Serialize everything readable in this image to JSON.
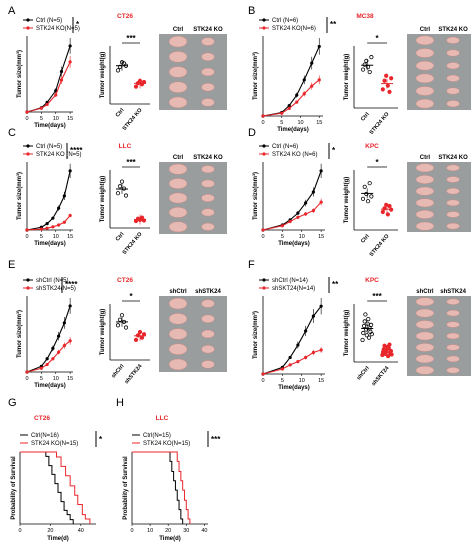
{
  "colors": {
    "ctrl": "#000000",
    "ko": "#e8262b",
    "title": "#e8262b"
  },
  "panels": [
    {
      "letter": "A",
      "tumor_model": "CT26",
      "legend": [
        "Ctrl (N=5)",
        "STK24 KO(N=5)"
      ],
      "significance": "*",
      "photo_labels": [
        "Ctrl",
        "STK24 KO"
      ],
      "chart_data": [
        {
          "type": "line",
          "xlabel": "Time(days)",
          "ylabel": "Tumor size(mm³)",
          "x": [
            0,
            5,
            7,
            10,
            12,
            15
          ],
          "xticks": [
            0,
            5,
            10,
            15
          ],
          "xlim": [
            0,
            16
          ],
          "series": [
            {
              "name": "Ctrl (N=5)",
              "values": [
                0,
                40,
                90,
                200,
                380,
                620
              ]
            },
            {
              "name": "STK24 KO(N=5)",
              "values": [
                0,
                35,
                70,
                160,
                300,
                470
              ]
            }
          ]
        },
        {
          "type": "scatter",
          "ylabel": "Tumor weight(g)",
          "categories": [
            "Ctrl",
            "STK24 KO"
          ],
          "significance": "***",
          "series": [
            {
              "name": "Ctrl",
              "values": [
                0.58,
                0.64,
                0.72,
                0.7,
                0.66
              ]
            },
            {
              "name": "STK24 KO",
              "values": [
                0.3,
                0.36,
                0.4,
                0.34,
                0.38
              ]
            }
          ]
        }
      ]
    },
    {
      "letter": "B",
      "tumor_model": "MC38",
      "legend": [
        "Ctrl (N=6)",
        "STK24 KO(N=6)"
      ],
      "significance": "**",
      "photo_labels": [
        "Ctrl",
        "STK24 KO"
      ],
      "chart_data": [
        {
          "type": "line",
          "xlabel": "Time(days)",
          "ylabel": "Tumor size(mm³)",
          "x": [
            0,
            5,
            7,
            9,
            11,
            13,
            15
          ],
          "xticks": [
            0,
            5,
            10,
            15
          ],
          "xlim": [
            0,
            16
          ],
          "series": [
            {
              "name": "Ctrl (N=6)",
              "values": [
                0,
                50,
                150,
                300,
                520,
                760,
                1000
              ]
            },
            {
              "name": "STK24 KO(N=6)",
              "values": [
                0,
                40,
                110,
                200,
                320,
                430,
                520
              ]
            }
          ]
        },
        {
          "type": "scatter",
          "ylabel": "Tumor weight(g)",
          "categories": [
            "Ctrl",
            "STK24 KO"
          ],
          "significance": "*",
          "series": [
            {
              "name": "Ctrl",
              "values": [
                0.62,
                0.7,
                0.76,
                0.66,
                0.58,
                0.82
              ]
            },
            {
              "name": "STK24 KO",
              "values": [
                0.3,
                0.44,
                0.52,
                0.36,
                0.26,
                0.48
              ]
            }
          ]
        }
      ]
    },
    {
      "letter": "C",
      "tumor_model": "LLC",
      "legend": [
        "Ctrl (N=5)",
        "STK24 KO (N=5)"
      ],
      "significance": "****",
      "photo_labels": [
        "Ctrl",
        "STK24 KO"
      ],
      "chart_data": [
        {
          "type": "line",
          "xlabel": "Time(days)",
          "ylabel": "Tumor size(mm³)",
          "x": [
            0,
            5,
            7,
            9,
            11,
            13,
            15
          ],
          "xticks": [
            0,
            5,
            10,
            15
          ],
          "xlim": [
            0,
            16
          ],
          "series": [
            {
              "name": "Ctrl (N=5)",
              "values": [
                0,
                60,
                140,
                260,
                480,
                750,
                1300
              ]
            },
            {
              "name": "STK24 KO (N=5)",
              "values": [
                0,
                20,
                40,
                70,
                110,
                170,
                320
              ]
            }
          ]
        },
        {
          "type": "scatter",
          "ylabel": "Tumor weight(g)",
          "categories": [
            "Ctrl",
            "STK24 KO"
          ],
          "significance": "***",
          "series": [
            {
              "name": "Ctrl",
              "values": [
                0.6,
                0.72,
                0.8,
                0.68,
                0.56
              ]
            },
            {
              "name": "STK24 KO",
              "values": [
                0.12,
                0.16,
                0.14,
                0.18,
                0.13
              ]
            }
          ]
        }
      ]
    },
    {
      "letter": "D",
      "tumor_model": "KPC",
      "legend": [
        "Ctrl (N=6)",
        "STK24 KO (N=6)"
      ],
      "significance": "*",
      "photo_labels": [
        "Ctrl",
        "STK24 KO"
      ],
      "chart_data": [
        {
          "type": "line",
          "xlabel": "Time(days)",
          "ylabel": "Tumor size(mm³)",
          "x": [
            0,
            5,
            7,
            9,
            11,
            13,
            15
          ],
          "xticks": [
            0,
            5,
            10,
            15
          ],
          "xlim": [
            0,
            16
          ],
          "series": [
            {
              "name": "Ctrl (N=6)",
              "values": [
                0,
                60,
                120,
                200,
                320,
                450,
                700
              ]
            },
            {
              "name": "STK24 KO (N=6)",
              "values": [
                0,
                50,
                100,
                150,
                190,
                230,
                330
              ]
            }
          ]
        },
        {
          "type": "scatter",
          "ylabel": "Tumor weight(g)",
          "categories": [
            "Ctrl",
            "STK24 KO"
          ],
          "significance": "*",
          "series": [
            {
              "name": "Ctrl",
              "values": [
                0.52,
                0.72,
                0.6,
                0.48,
                0.78,
                0.56
              ]
            },
            {
              "name": "STK24 KO",
              "values": [
                0.3,
                0.36,
                0.42,
                0.26,
                0.4,
                0.34
              ]
            }
          ]
        }
      ]
    },
    {
      "letter": "E",
      "tumor_model": "CT26",
      "legend": [
        "shCtrl (N=5)",
        "shSTK24(N=5)"
      ],
      "significance": "****",
      "photo_labels": [
        "shCtrl",
        "shSTK24"
      ],
      "chart_data": [
        {
          "type": "line",
          "xlabel": "Time(days)",
          "ylabel": "Tumor size(mm³)",
          "x": [
            0,
            5,
            7,
            9,
            11,
            13,
            15
          ],
          "xticks": [
            0,
            5,
            10,
            15
          ],
          "xlim": [
            0,
            16
          ],
          "series": [
            {
              "name": "shCtrl (N=5)",
              "values": [
                0,
                60,
                140,
                250,
                380,
                520,
                700
              ]
            },
            {
              "name": "shSTK24(N=5)",
              "values": [
                0,
                40,
                80,
                140,
                210,
                280,
                330
              ]
            }
          ]
        },
        {
          "type": "scatter",
          "ylabel": "Tumor weight(g)",
          "categories": [
            "shCtrl",
            "shSTK24"
          ],
          "significance": "*",
          "series": [
            {
              "name": "shCtrl",
              "values": [
                0.62,
                0.72,
                0.8,
                0.68,
                0.58
              ]
            },
            {
              "name": "shSTK24",
              "values": [
                0.36,
                0.44,
                0.5,
                0.4,
                0.46
              ]
            }
          ]
        }
      ]
    },
    {
      "letter": "F",
      "tumor_model": "KPC",
      "legend": [
        "shCtrl (N=14)",
        "shSKT24(N=14)"
      ],
      "significance": "**",
      "photo_labels": [
        "shCtrl",
        "shSTK24"
      ],
      "chart_data": [
        {
          "type": "line",
          "xlabel": "Time(days)",
          "ylabel": "Tumor size(mm³)",
          "x": [
            0,
            5,
            7,
            9,
            11,
            13,
            15
          ],
          "xticks": [
            0,
            5,
            10,
            15
          ],
          "xlim": [
            0,
            16
          ],
          "series": [
            {
              "name": "shCtrl (N=14)",
              "values": [
                0,
                80,
                200,
                350,
                520,
                700,
                820
              ]
            },
            {
              "name": "shSKT24(N=14)",
              "values": [
                0,
                60,
                110,
                150,
                200,
                260,
                290
              ]
            }
          ]
        },
        {
          "type": "scatter",
          "ylabel": "Tumor weight(g)",
          "categories": [
            "shCtrl",
            "shSKT24"
          ],
          "significance": "***",
          "series": [
            {
              "name": "shCtrl",
              "values": [
                0.38,
                0.5,
                0.62,
                0.7,
                0.82,
                0.56,
                0.46,
                0.66,
                0.74,
                0.42,
                0.58,
                0.52,
                0.64,
                0.48
              ]
            },
            {
              "name": "shSKT24",
              "values": [
                0.12,
                0.16,
                0.22,
                0.28,
                0.14,
                0.2,
                0.18,
                0.26,
                0.1,
                0.24,
                0.3,
                0.15,
                0.19,
                0.13
              ]
            }
          ]
        }
      ]
    },
    {
      "letter": "G",
      "tumor_model": "CT26",
      "legend": [
        "Ctrl(N=16)",
        "STK24 KO(N=15)"
      ],
      "significance": "*",
      "chart_data": {
        "type": "line",
        "xlabel": "Time(d)",
        "ylabel": "Probability of Survival",
        "xticks": [
          0,
          20,
          40
        ],
        "xlim": [
          0,
          50
        ],
        "ylim": [
          0,
          100
        ],
        "series": [
          {
            "name": "Ctrl(N=16)",
            "x": [
              0,
              17,
              19,
              21,
              23,
              25,
              27,
              29,
              31,
              33,
              35
            ],
            "values": [
              100,
              94,
              81,
              69,
              56,
              44,
              31,
              19,
              13,
              6,
              0
            ]
          },
          {
            "name": "STK24 KO(N=15)",
            "x": [
              0,
              24,
              27,
              30,
              33,
              36,
              38,
              41,
              43,
              46
            ],
            "values": [
              100,
              93,
              80,
              67,
              53,
              40,
              27,
              13,
              7,
              0
            ]
          }
        ]
      }
    },
    {
      "letter": "H",
      "tumor_model": "LLC",
      "legend": [
        "Ctrl(N=15)",
        "STK24 KO(N=15)"
      ],
      "significance": "***",
      "chart_data": {
        "type": "line",
        "xlabel": "Time(d)",
        "ylabel": "Probability of Survival",
        "xticks": [
          0,
          10,
          20,
          30,
          40
        ],
        "xlim": [
          0,
          42
        ],
        "ylim": [
          0,
          100
        ],
        "series": [
          {
            "name": "Ctrl(N=15)",
            "x": [
              0,
              21,
              22,
              23,
              24,
              25,
              26,
              27,
              28
            ],
            "values": [
              100,
              87,
              73,
              60,
              47,
              33,
              20,
              7,
              0
            ]
          },
          {
            "name": "STK24 KO(N=15)",
            "x": [
              0,
              25,
              26,
              27,
              28,
              29,
              30,
              31,
              32
            ],
            "values": [
              100,
              87,
              73,
              60,
              47,
              33,
              20,
              7,
              0
            ]
          }
        ]
      }
    }
  ]
}
